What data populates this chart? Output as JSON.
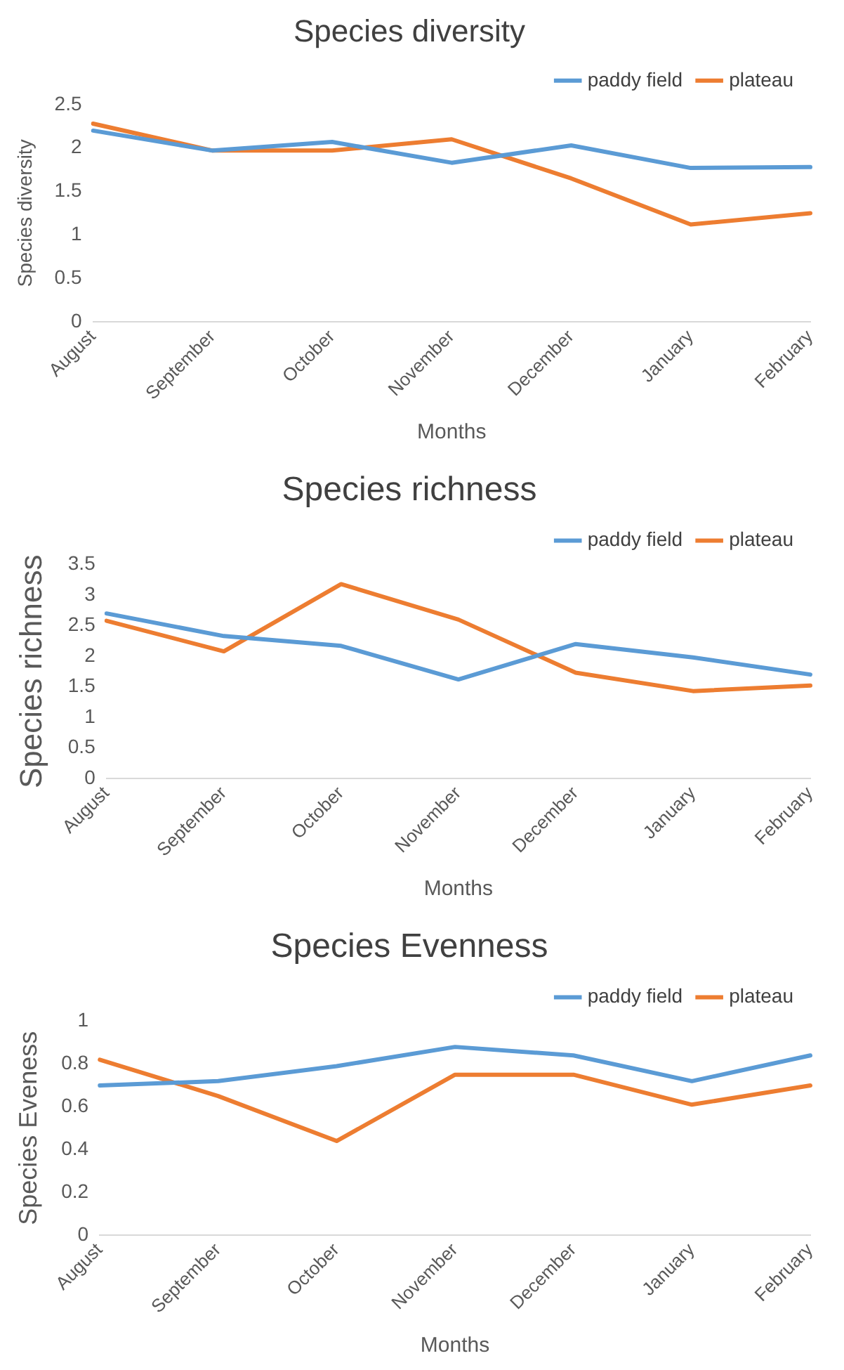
{
  "chart_data": [
    {
      "type": "line",
      "title": "Species diversity",
      "xlabel": "Months",
      "ylabel": "Species diversity",
      "categories": [
        "August",
        "September",
        "October",
        "November",
        "December",
        "January",
        "February"
      ],
      "series": [
        {
          "name": "paddy field",
          "color": "#5b9bd5",
          "values": [
            2.2,
            1.97,
            2.07,
            1.83,
            2.03,
            1.77,
            1.78
          ]
        },
        {
          "name": "plateau",
          "color": "#ed7d31",
          "values": [
            2.28,
            1.97,
            1.97,
            2.1,
            1.65,
            1.12,
            1.25
          ]
        }
      ],
      "ylim": [
        0,
        2.5
      ],
      "yticks": [
        0,
        0.5,
        1,
        1.5,
        2,
        2.5
      ],
      "grid": false,
      "legend": "top right",
      "marker": "none",
      "line_style": "solid"
    },
    {
      "type": "line",
      "title": "Species richness",
      "xlabel": "Months",
      "ylabel": "Species richness",
      "categories": [
        "August",
        "September",
        "October",
        "November",
        "December",
        "January",
        "February"
      ],
      "series": [
        {
          "name": "paddy field",
          "color": "#5b9bd5",
          "values": [
            2.7,
            2.33,
            2.17,
            1.62,
            2.2,
            1.98,
            1.7
          ]
        },
        {
          "name": "plateau",
          "color": "#ed7d31",
          "values": [
            2.58,
            2.08,
            3.18,
            2.6,
            1.73,
            1.43,
            1.52
          ]
        }
      ],
      "ylim": [
        0,
        3.5
      ],
      "yticks": [
        0,
        0.5,
        1,
        1.5,
        2,
        2.5,
        3,
        3.5
      ],
      "grid": false,
      "legend": "top right",
      "marker": "none",
      "line_style": "solid"
    },
    {
      "type": "line",
      "title": "Species Evenness",
      "xlabel": "Months",
      "ylabel": "Species Eveness",
      "categories": [
        "August",
        "September",
        "October",
        "November",
        "December",
        "January",
        "February"
      ],
      "series": [
        {
          "name": "paddy field",
          "color": "#5b9bd5",
          "values": [
            0.7,
            0.72,
            0.79,
            0.88,
            0.84,
            0.72,
            0.84
          ]
        },
        {
          "name": "plateau",
          "color": "#ed7d31",
          "values": [
            0.82,
            0.65,
            0.44,
            0.75,
            0.75,
            0.61,
            0.7
          ]
        }
      ],
      "ylim": [
        0,
        1
      ],
      "yticks": [
        0,
        0.2,
        0.4,
        0.6,
        0.8,
        1
      ],
      "grid": false,
      "legend": "top right",
      "marker": "none",
      "line_style": "solid"
    }
  ]
}
